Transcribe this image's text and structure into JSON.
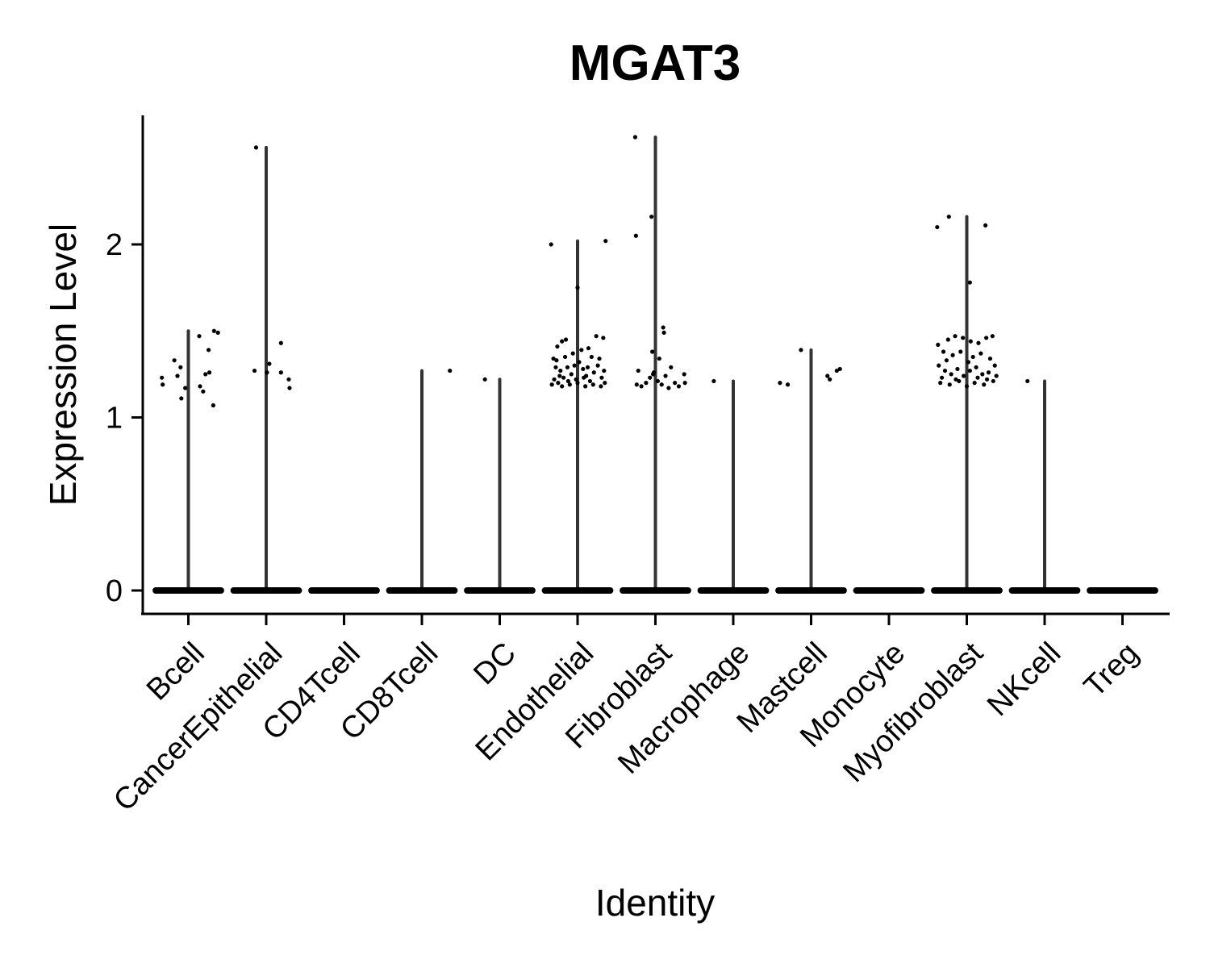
{
  "chart_data": {
    "type": "violin",
    "title": "MGAT3",
    "xlabel": "Identity",
    "ylabel": "Expression Level",
    "categories": [
      "Bcell",
      "CancerEpithelial",
      "CD4Tcell",
      "CD8Tcell",
      "DC",
      "Endothelial",
      "Fibroblast",
      "Macrophage",
      "Mastcell",
      "Monocyte",
      "Myofibroblast",
      "NKcell",
      "Treg"
    ],
    "yticks": [
      0,
      1,
      2
    ],
    "ytick_labels": [
      "0",
      "1",
      "2"
    ],
    "ylim": [
      -0.13,
      2.75
    ],
    "max_values": [
      1.5,
      2.56,
      0,
      1.27,
      1.22,
      2.02,
      2.62,
      1.21,
      1.39,
      0,
      2.16,
      1.21,
      0
    ],
    "baseline_value": 0,
    "points": [
      [
        {
          "dx": -0.34,
          "y": 1.23
        },
        {
          "dx": -0.33,
          "y": 1.19
        },
        {
          "dx": -0.18,
          "y": 1.33
        },
        {
          "dx": -0.14,
          "y": 1.24
        },
        {
          "dx": -0.1,
          "y": 1.29
        },
        {
          "dx": -0.09,
          "y": 1.11
        },
        {
          "dx": -0.04,
          "y": 1.17
        },
        {
          "dx": 0.14,
          "y": 1.47
        },
        {
          "dx": 0.15,
          "y": 1.18
        },
        {
          "dx": 0.19,
          "y": 1.15
        },
        {
          "dx": 0.22,
          "y": 1.25
        },
        {
          "dx": 0.26,
          "y": 1.39
        },
        {
          "dx": 0.27,
          "y": 1.26
        },
        {
          "dx": 0.32,
          "y": 1.07
        },
        {
          "dx": 0.33,
          "y": 1.5
        },
        {
          "dx": 0.38,
          "y": 1.49
        }
      ],
      [
        {
          "dx": -0.13,
          "y": 2.56
        },
        {
          "dx": -0.15,
          "y": 1.27
        },
        {
          "dx": 0.01,
          "y": 1.26
        },
        {
          "dx": 0.04,
          "y": 1.31
        },
        {
          "dx": 0.19,
          "y": 1.43
        },
        {
          "dx": 0.19,
          "y": 1.26
        },
        {
          "dx": 0.29,
          "y": 1.22
        },
        {
          "dx": 0.3,
          "y": 1.17
        }
      ],
      [],
      [
        {
          "dx": 0.36,
          "y": 1.27
        }
      ],
      [
        {
          "dx": -0.19,
          "y": 1.22
        }
      ],
      [
        {
          "dx": -0.34,
          "y": 2.0
        },
        {
          "dx": 0.36,
          "y": 2.02
        },
        {
          "dx": 0.0,
          "y": 1.75
        },
        {
          "dx": -0.31,
          "y": 1.34
        },
        {
          "dx": -0.26,
          "y": 1.41
        },
        {
          "dx": -0.2,
          "y": 1.44
        },
        {
          "dx": -0.15,
          "y": 1.45
        },
        {
          "dx": -0.28,
          "y": 1.29
        },
        {
          "dx": -0.22,
          "y": 1.27
        },
        {
          "dx": -0.3,
          "y": 1.22
        },
        {
          "dx": -0.25,
          "y": 1.2
        },
        {
          "dx": -0.18,
          "y": 1.23
        },
        {
          "dx": -0.12,
          "y": 1.21
        },
        {
          "dx": -0.08,
          "y": 1.25
        },
        {
          "dx": -0.04,
          "y": 1.3
        },
        {
          "dx": 0.02,
          "y": 1.32
        },
        {
          "dx": 0.07,
          "y": 1.28
        },
        {
          "dx": 0.11,
          "y": 1.24
        },
        {
          "dx": 0.16,
          "y": 1.21
        },
        {
          "dx": 0.21,
          "y": 1.26
        },
        {
          "dx": 0.26,
          "y": 1.3
        },
        {
          "dx": 0.31,
          "y": 1.23
        },
        {
          "dx": 0.35,
          "y": 1.2
        },
        {
          "dx": 0.24,
          "y": 1.47
        },
        {
          "dx": 0.33,
          "y": 1.46
        },
        {
          "dx": 0.14,
          "y": 1.4
        },
        {
          "dx": -0.06,
          "y": 1.37
        },
        {
          "dx": 0.05,
          "y": 1.39
        },
        {
          "dx": -0.33,
          "y": 1.19
        },
        {
          "dx": -0.2,
          "y": 1.18
        },
        {
          "dx": -0.1,
          "y": 1.19
        },
        {
          "dx": 0.0,
          "y": 1.2
        },
        {
          "dx": 0.1,
          "y": 1.18
        },
        {
          "dx": 0.2,
          "y": 1.19
        },
        {
          "dx": 0.3,
          "y": 1.18
        },
        {
          "dx": -0.27,
          "y": 1.33
        },
        {
          "dx": -0.16,
          "y": 1.35
        },
        {
          "dx": 0.18,
          "y": 1.35
        },
        {
          "dx": 0.28,
          "y": 1.34
        },
        {
          "dx": -0.02,
          "y": 1.22
        },
        {
          "dx": 0.08,
          "y": 1.23
        },
        {
          "dx": -0.23,
          "y": 1.24
        },
        {
          "dx": 0.13,
          "y": 1.29
        },
        {
          "dx": 0.34,
          "y": 1.27
        },
        {
          "dx": -0.13,
          "y": 1.29
        }
      ],
      [
        {
          "dx": -0.26,
          "y": 2.62
        },
        {
          "dx": -0.25,
          "y": 2.05
        },
        {
          "dx": -0.05,
          "y": 2.16
        },
        {
          "dx": 0.1,
          "y": 1.52
        },
        {
          "dx": 0.11,
          "y": 1.49
        },
        {
          "dx": -0.04,
          "y": 1.38
        },
        {
          "dx": 0.05,
          "y": 1.34
        },
        {
          "dx": -0.22,
          "y": 1.27
        },
        {
          "dx": -0.24,
          "y": 1.19
        },
        {
          "dx": -0.18,
          "y": 1.18
        },
        {
          "dx": -0.12,
          "y": 1.2
        },
        {
          "dx": -0.07,
          "y": 1.23
        },
        {
          "dx": -0.02,
          "y": 1.26
        },
        {
          "dx": 0.03,
          "y": 1.21
        },
        {
          "dx": 0.08,
          "y": 1.19
        },
        {
          "dx": 0.13,
          "y": 1.24
        },
        {
          "dx": 0.17,
          "y": 1.17
        },
        {
          "dx": 0.2,
          "y": 1.29
        },
        {
          "dx": 0.25,
          "y": 1.2
        },
        {
          "dx": 0.3,
          "y": 1.18
        },
        {
          "dx": 0.37,
          "y": 1.25
        },
        {
          "dx": 0.38,
          "y": 1.2
        },
        {
          "dx": -0.03,
          "y": 1.25
        }
      ],
      [
        {
          "dx": -0.25,
          "y": 1.21
        }
      ],
      [
        {
          "dx": -0.4,
          "y": 1.2
        },
        {
          "dx": -0.3,
          "y": 1.19
        },
        {
          "dx": -0.13,
          "y": 1.39
        },
        {
          "dx": 0.21,
          "y": 1.24
        },
        {
          "dx": 0.24,
          "y": 1.22
        },
        {
          "dx": 0.37,
          "y": 1.28
        },
        {
          "dx": 0.33,
          "y": 1.27
        }
      ],
      [],
      [
        {
          "dx": -0.38,
          "y": 2.1
        },
        {
          "dx": -0.23,
          "y": 2.16
        },
        {
          "dx": 0.24,
          "y": 2.11
        },
        {
          "dx": 0.04,
          "y": 1.78
        },
        {
          "dx": -0.37,
          "y": 1.42
        },
        {
          "dx": -0.3,
          "y": 1.38
        },
        {
          "dx": -0.24,
          "y": 1.45
        },
        {
          "dx": -0.15,
          "y": 1.47
        },
        {
          "dx": -0.05,
          "y": 1.46
        },
        {
          "dx": 0.05,
          "y": 1.44
        },
        {
          "dx": 0.15,
          "y": 1.43
        },
        {
          "dx": 0.25,
          "y": 1.46
        },
        {
          "dx": 0.33,
          "y": 1.47
        },
        {
          "dx": -0.36,
          "y": 1.3
        },
        {
          "dx": -0.28,
          "y": 1.27
        },
        {
          "dx": -0.2,
          "y": 1.25
        },
        {
          "dx": -0.12,
          "y": 1.28
        },
        {
          "dx": -0.04,
          "y": 1.24
        },
        {
          "dx": 0.04,
          "y": 1.27
        },
        {
          "dx": 0.12,
          "y": 1.29
        },
        {
          "dx": 0.2,
          "y": 1.25
        },
        {
          "dx": 0.28,
          "y": 1.26
        },
        {
          "dx": 0.36,
          "y": 1.3
        },
        {
          "dx": -0.34,
          "y": 1.2
        },
        {
          "dx": -0.22,
          "y": 1.19
        },
        {
          "dx": -0.1,
          "y": 1.21
        },
        {
          "dx": 0.0,
          "y": 1.18
        },
        {
          "dx": 0.1,
          "y": 1.2
        },
        {
          "dx": 0.22,
          "y": 1.19
        },
        {
          "dx": 0.34,
          "y": 1.21
        },
        {
          "dx": -0.18,
          "y": 1.36
        },
        {
          "dx": -0.08,
          "y": 1.38
        },
        {
          "dx": 0.08,
          "y": 1.35
        },
        {
          "dx": 0.18,
          "y": 1.37
        },
        {
          "dx": 0.3,
          "y": 1.34
        },
        {
          "dx": -0.26,
          "y": 1.33
        },
        {
          "dx": 0.02,
          "y": 1.32
        },
        {
          "dx": -0.32,
          "y": 1.23
        },
        {
          "dx": 0.26,
          "y": 1.22
        },
        {
          "dx": -0.14,
          "y": 1.22
        },
        {
          "dx": 0.14,
          "y": 1.23
        },
        {
          "dx": 0.38,
          "y": 1.24
        }
      ],
      [
        {
          "dx": -0.22,
          "y": 1.21
        }
      ],
      []
    ]
  }
}
